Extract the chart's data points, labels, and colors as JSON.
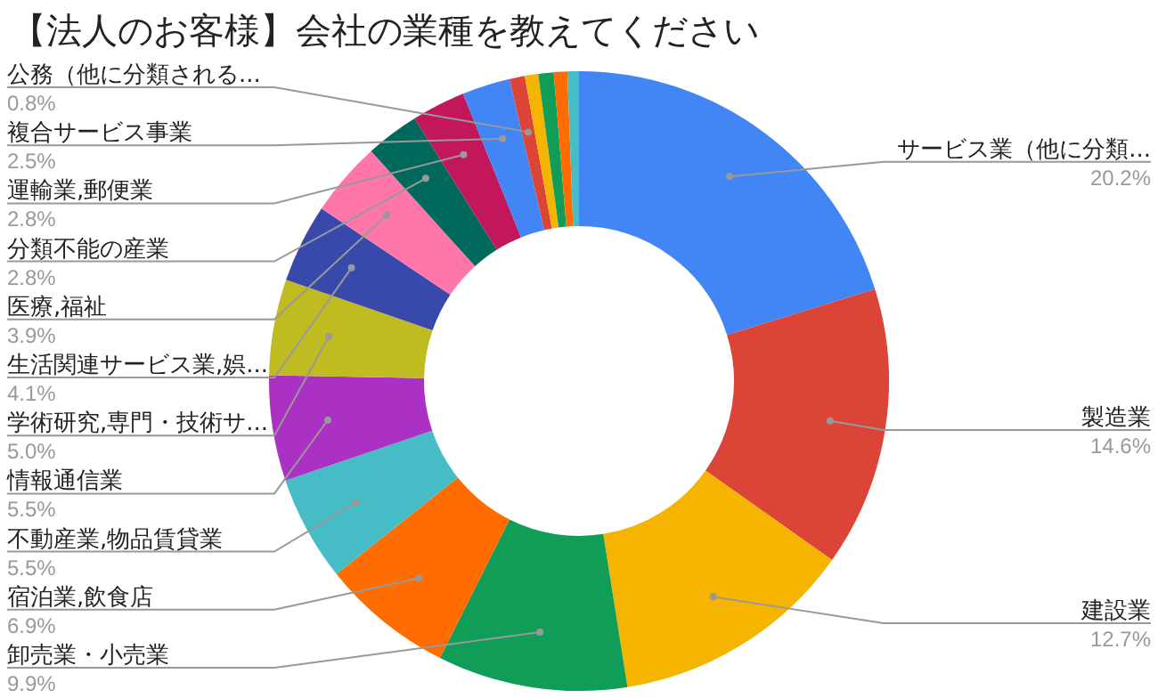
{
  "chart_data": {
    "type": "donut",
    "title": "【法人のお客様】会社の業種を教えてください",
    "categories": [
      "サービス業（他に分類...",
      "製造業",
      "建設業",
      "卸売業・小売業",
      "宿泊業,飲食店",
      "不動産業,物品賃貸業",
      "情報通信業",
      "学術研究,専門・技術サ...",
      "生活関連サービス業,娯...",
      "医療,福祉",
      "分類不能の産業",
      "運輸業,郵便業",
      "複合サービス事業",
      "公務（他に分類される...",
      null,
      null,
      null,
      null
    ],
    "values": [
      20.2,
      14.6,
      12.7,
      9.9,
      6.9,
      5.5,
      5.5,
      5.0,
      4.1,
      3.9,
      2.8,
      2.8,
      2.5,
      0.8,
      0.7,
      0.8,
      0.7,
      0.6
    ],
    "value_labels": [
      "20.2%",
      "14.6%",
      "12.7%",
      "9.9%",
      "6.9%",
      "5.5%",
      "5.5%",
      "5.0%",
      "4.1%",
      "3.9%",
      "2.8%",
      "2.8%",
      "2.5%",
      "0.8%",
      null,
      null,
      null,
      null
    ],
    "colors": [
      "#4285f4",
      "#db4437",
      "#f4b400",
      "#0f9d58",
      "#ff6d01",
      "#46bdc6",
      "#ab30c4",
      "#c0bb21",
      "#3949ab",
      "#ff77aa",
      "#00695c",
      "#c2185b",
      "#4285f4",
      "#db4437",
      "#f4b400",
      "#0f9d58",
      "#ff6d01",
      "#46bdc6"
    ],
    "legend": false
  }
}
